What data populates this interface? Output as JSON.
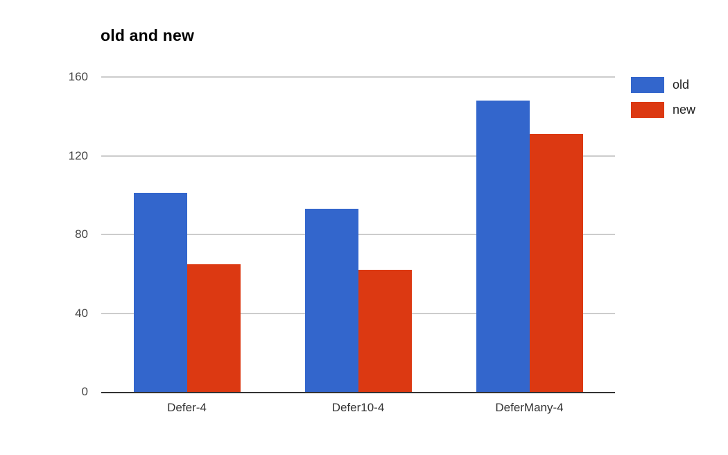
{
  "chart_data": {
    "type": "bar",
    "title": "old and new",
    "categories": [
      "Defer-4",
      "Defer10-4",
      "DeferMany-4"
    ],
    "series": [
      {
        "name": "old",
        "color": "#3366cc",
        "values": [
          101,
          93,
          148
        ]
      },
      {
        "name": "new",
        "color": "#dc3912",
        "values": [
          65,
          62,
          131
        ]
      }
    ],
    "xlabel": "",
    "ylabel": "",
    "ylim": [
      0,
      160
    ],
    "yticks": [
      0,
      40,
      80,
      120,
      160
    ],
    "grid": true,
    "legend_position": "right",
    "colors": {
      "gridline": "#cccccc",
      "baseline": "#333333",
      "axis_label": "#444444",
      "category_label": "#333333",
      "title": "#000000",
      "background": "#ffffff"
    }
  }
}
